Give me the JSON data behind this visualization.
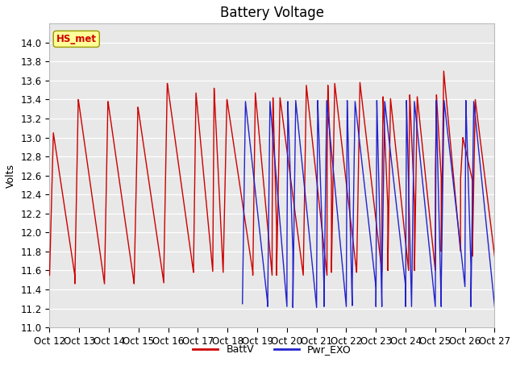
{
  "title": "Battery Voltage",
  "ylabel": "Volts",
  "ylim": [
    11.0,
    14.2
  ],
  "yticks": [
    11.0,
    11.2,
    11.4,
    11.6,
    11.8,
    12.0,
    12.2,
    12.4,
    12.6,
    12.8,
    13.0,
    13.2,
    13.4,
    13.6,
    13.8,
    14.0
  ],
  "xtick_labels": [
    "Oct 12",
    "Oct 13",
    "Oct 14",
    "Oct 15",
    "Oct 16",
    "Oct 17",
    "Oct 18",
    "Oct 19",
    "Oct 20",
    "Oct 21",
    "Oct 22",
    "Oct 23",
    "Oct 24",
    "Oct 25",
    "Oct 26",
    "Oct 27"
  ],
  "batt_color": "#cc0000",
  "pwr_color": "#2222cc",
  "legend_batt": "BattV",
  "legend_pwr": "Pwr_EXO",
  "annotation_text": "HS_met",
  "annotation_color": "#cc0000",
  "annotation_bg": "#ffff99",
  "plot_bg": "#e8e8e8",
  "title_fontsize": 12,
  "axis_label_fontsize": 9,
  "tick_fontsize": 8.5
}
